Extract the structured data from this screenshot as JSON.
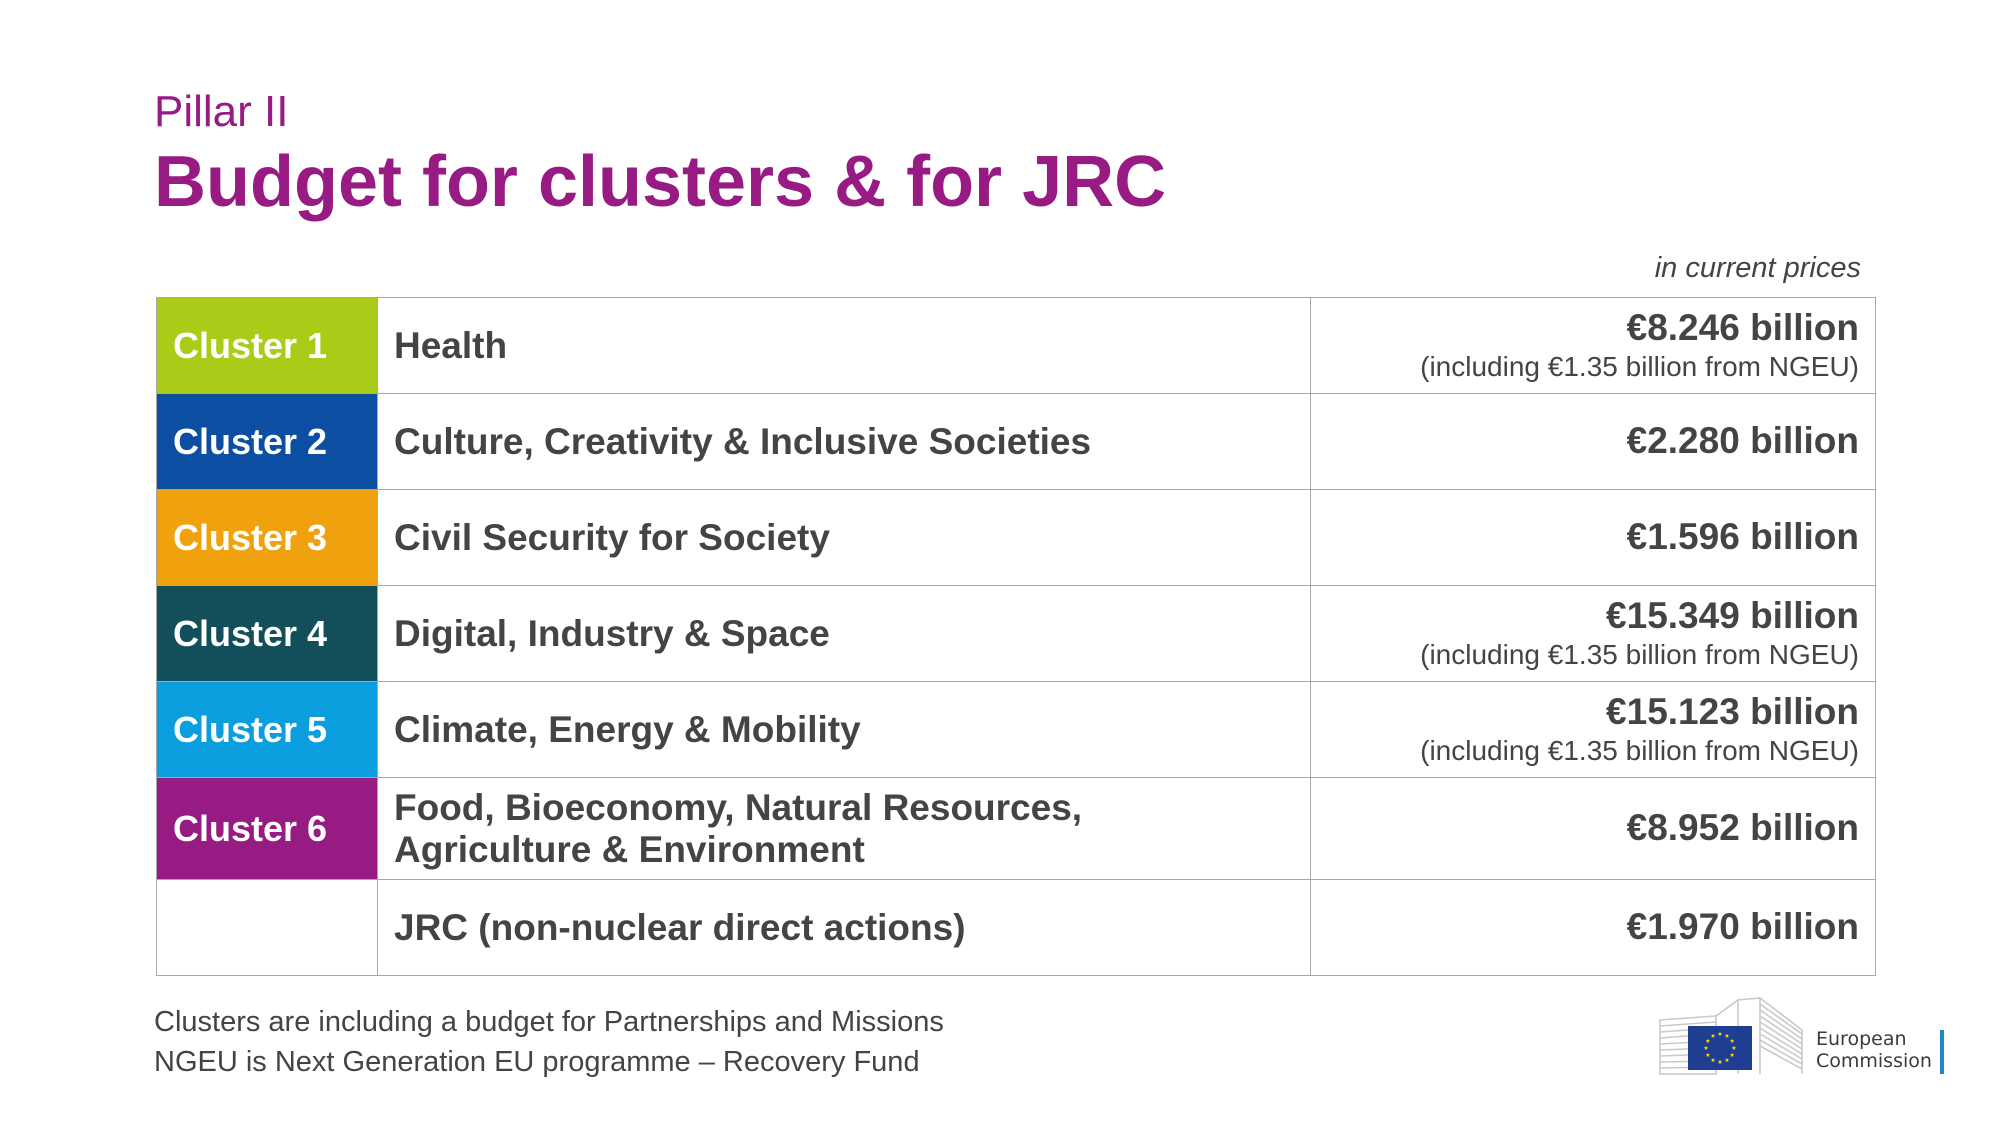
{
  "header": {
    "subtitle": "Pillar II",
    "title": "Budget for clusters & for JRC",
    "price_note": "in current prices"
  },
  "rows": [
    {
      "cluster": "Cluster 1",
      "color": "#aacc18",
      "description": "Health",
      "amount": "€8.246 billion",
      "note": "(including €1.35 billion from NGEU)"
    },
    {
      "cluster": "Cluster 2",
      "color": "#0b4ea2",
      "description": "Culture, Creativity & Inclusive Societies",
      "amount": "€2.280 billion",
      "note": ""
    },
    {
      "cluster": "Cluster 3",
      "color": "#f0a10e",
      "description": "Civil Security for Society",
      "amount": "€1.596 billion",
      "note": ""
    },
    {
      "cluster": "Cluster 4",
      "color": "#124f5a",
      "description": "Digital, Industry & Space",
      "amount": "€15.349 billion",
      "note": "(including €1.35 billion from NGEU)"
    },
    {
      "cluster": "Cluster 5",
      "color": "#0a9edf",
      "description": "Climate, Energy & Mobility",
      "amount": "€15.123 billion",
      "note": "(including €1.35 billion from NGEU)"
    },
    {
      "cluster": "Cluster 6",
      "color": "#961b82",
      "description_line1": "Food, Bioeconomy, Natural Resources,",
      "description_line2": "Agriculture & Environment",
      "amount": "€8.952 billion",
      "note": ""
    },
    {
      "cluster": "",
      "color": "#ffffff",
      "description": "JRC (non-nuclear direct actions)",
      "amount": "€1.970 billion",
      "note": ""
    }
  ],
  "footnotes": [
    "Clusters are including a budget for Partnerships and Missions",
    "NGEU is Next Generation EU programme – Recovery Fund"
  ],
  "logo": {
    "line1": "European",
    "line2": "Commission",
    "flag_color": "#1f3d91",
    "star_color": "#ffdd00",
    "accent_color": "#1e88c8"
  }
}
